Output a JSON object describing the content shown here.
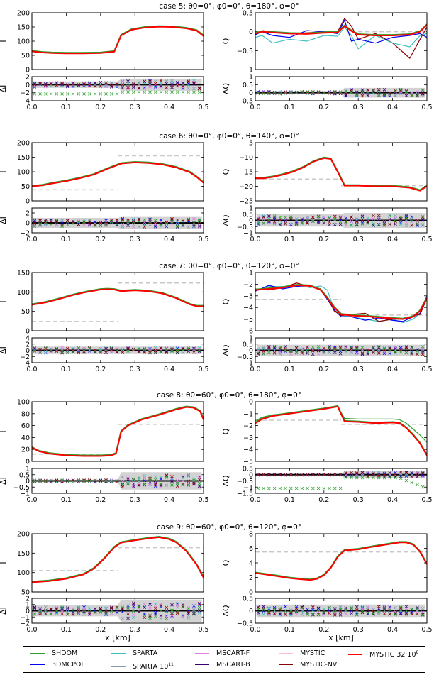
{
  "chart_data": [
    {
      "type": "line",
      "title": "case 5: θ0=0°, φ0=0°, θ=180°, φ=0°",
      "panels": {
        "I": {
          "ylabel": "I",
          "ylim": [
            0,
            200
          ],
          "yticks": [
            0,
            50,
            100,
            150,
            200
          ],
          "ref_dash": [],
          "x": [
            0.0,
            0.03,
            0.06,
            0.1,
            0.15,
            0.2,
            0.24,
            0.26,
            0.29,
            0.33,
            0.37,
            0.41,
            0.45,
            0.48,
            0.5
          ],
          "y": [
            64,
            60,
            58,
            57,
            57,
            58,
            63,
            120,
            140,
            148,
            151,
            150,
            145,
            137,
            118
          ]
        },
        "dI": {
          "ylabel": "ΔI",
          "ylim": [
            -4,
            2
          ],
          "yticks": [
            -4,
            -2,
            0,
            2
          ],
          "band_left": 0.8,
          "band_right": 1.5,
          "outlier_shdom": -2.3
        },
        "Q": {
          "ylabel": "Q",
          "ylim": [
            -1.0,
            0.5
          ],
          "yticks": [
            -1.0,
            -0.5,
            0.0,
            0.5
          ],
          "ref_dash": [
            {
              "x0": 0.3,
              "x1": 0.5,
              "y": 0.0
            }
          ],
          "x": [
            0.0,
            0.02,
            0.05,
            0.1,
            0.15,
            0.2,
            0.24,
            0.26,
            0.28,
            0.3,
            0.35,
            0.4,
            0.45,
            0.48,
            0.5
          ],
          "y": [
            -0.05,
            0.0,
            -0.02,
            -0.05,
            -0.06,
            -0.03,
            -0.02,
            0.15,
            0.02,
            -0.08,
            -0.1,
            -0.1,
            -0.08,
            0.0,
            0.18
          ],
          "noisy": {
            "MYSTIC-NV": [
              -0.08,
              0.03,
              0.0,
              -0.04,
              -0.03,
              0.0,
              0.0,
              0.35,
              0.15,
              -0.2,
              -0.05,
              -0.3,
              -0.7,
              -0.2,
              0.12
            ],
            "SPARTA": [
              -0.15,
              -0.1,
              -0.3,
              -0.2,
              -0.25,
              -0.1,
              -0.12,
              0.12,
              -0.1,
              -0.45,
              -0.1,
              -0.3,
              -0.4,
              -0.1,
              -0.05
            ],
            "3DMCPOL": [
              -0.08,
              0.0,
              -0.1,
              -0.15,
              0.03,
              0.0,
              -0.05,
              0.3,
              -0.25,
              -0.2,
              -0.3,
              -0.15,
              -0.1,
              -0.05,
              -0.15
            ]
          }
        },
        "dQ": {
          "ylabel": "ΔQ",
          "ylim": [
            -0.5,
            1.0
          ],
          "yticks": [
            -0.5,
            0.0,
            0.5,
            1.0
          ],
          "band_left": 0.1,
          "band_right": 0.3
        }
      }
    },
    {
      "type": "line",
      "title": "case 6: θ0=0°, φ0=0°, θ=140°, φ=0°",
      "panels": {
        "I": {
          "ylabel": "I",
          "ylim": [
            0,
            200
          ],
          "yticks": [
            0,
            50,
            100,
            150,
            200
          ],
          "ref_dash": [
            {
              "x0": 0.0,
              "x1": 0.25,
              "y": 38
            },
            {
              "x0": 0.25,
              "x1": 0.5,
              "y": 155
            }
          ],
          "x": [
            0.0,
            0.03,
            0.06,
            0.1,
            0.14,
            0.18,
            0.22,
            0.26,
            0.3,
            0.34,
            0.38,
            0.42,
            0.46,
            0.48,
            0.5
          ],
          "y": [
            50,
            53,
            60,
            68,
            78,
            90,
            110,
            128,
            132,
            130,
            125,
            115,
            98,
            82,
            62
          ]
        },
        "dI": {
          "ylabel": "ΔI",
          "ylim": [
            -2,
            3
          ],
          "yticks": [
            -2,
            0,
            2
          ],
          "band_left": 1.0,
          "band_right": 1.2
        },
        "Q": {
          "ylabel": "Q",
          "ylim": [
            -25,
            -5
          ],
          "yticks": [
            -25,
            -20,
            -15,
            -10,
            -5
          ],
          "ref_dash": [
            {
              "x0": 0.0,
              "x1": 0.25,
              "y": -17.5
            },
            {
              "x0": 0.25,
              "x1": 0.5,
              "y": -19.8
            }
          ],
          "x": [
            0.0,
            0.02,
            0.05,
            0.08,
            0.11,
            0.14,
            0.17,
            0.2,
            0.22,
            0.24,
            0.26,
            0.3,
            0.35,
            0.4,
            0.45,
            0.48,
            0.5
          ],
          "y": [
            -17.2,
            -17.3,
            -16.8,
            -16,
            -15,
            -13.5,
            -11.5,
            -10.3,
            -10.6,
            -15,
            -19.8,
            -19.8,
            -20,
            -20,
            -20.5,
            -21.5,
            -20
          ],
          "noisy": {}
        },
        "dQ": {
          "ylabel": "ΔQ",
          "ylim": [
            -1.0,
            1.0
          ],
          "yticks": [
            -1.0,
            -0.5,
            0.0,
            0.5,
            1.0
          ],
          "band_left": 0.5,
          "band_right": 0.6
        }
      }
    },
    {
      "type": "line",
      "title": "case 7: θ0=0°, φ0=0°, θ=120°, φ=0°",
      "panels": {
        "I": {
          "ylabel": "I",
          "ylim": [
            0,
            150
          ],
          "yticks": [
            0,
            50,
            100,
            150
          ],
          "ref_dash": [
            {
              "x0": 0.0,
              "x1": 0.25,
              "y": 24
            },
            {
              "x0": 0.25,
              "x1": 0.5,
              "y": 123
            }
          ],
          "x": [
            0.0,
            0.04,
            0.08,
            0.12,
            0.16,
            0.2,
            0.22,
            0.24,
            0.26,
            0.3,
            0.34,
            0.38,
            0.42,
            0.46,
            0.48,
            0.5
          ],
          "y": [
            67,
            73,
            82,
            92,
            100,
            106,
            107,
            106,
            102,
            104,
            102,
            96,
            84,
            68,
            63,
            63
          ]
        },
        "dI": {
          "ylabel": "ΔI",
          "ylim": [
            -4,
            4
          ],
          "yticks": [
            -4,
            -2,
            0,
            2,
            4
          ],
          "band_left": 1.2,
          "band_right": 1.2
        },
        "Q": {
          "ylabel": "Q",
          "ylim": [
            -6,
            -1
          ],
          "yticks": [
            -6,
            -5,
            -4,
            -3,
            -2,
            -1
          ],
          "ref_dash": [
            {
              "x0": 0.0,
              "x1": 0.25,
              "y": -3.3
            },
            {
              "x0": 0.35,
              "x1": 0.5,
              "y": -4.65
            }
          ],
          "x": [
            0.0,
            0.04,
            0.08,
            0.12,
            0.16,
            0.19,
            0.21,
            0.23,
            0.25,
            0.28,
            0.32,
            0.36,
            0.4,
            0.43,
            0.46,
            0.48,
            0.5
          ],
          "y": [
            -2.5,
            -2.4,
            -2.3,
            -2.1,
            -2.15,
            -2.5,
            -3.2,
            -4.0,
            -4.6,
            -4.7,
            -4.75,
            -4.85,
            -4.95,
            -5.0,
            -4.8,
            -4.3,
            -3.2
          ],
          "noisy": {
            "SPARTA": [
              -2.6,
              -2.2,
              -2.2,
              -2.1,
              -2.3,
              -2.15,
              -2.5,
              -4.2,
              -4.7,
              -4.8,
              -5.0,
              -5.2,
              -5.0,
              -5.3,
              -5.0,
              -4.5,
              -3.3
            ],
            "3DMCPOL": [
              -2.6,
              -2.1,
              -2.4,
              -2.2,
              -2.1,
              -2.5,
              -3.3,
              -4.2,
              -4.8,
              -4.8,
              -5.1,
              -4.9,
              -5.1,
              -5.2,
              -4.8,
              -4.5,
              -3.0
            ],
            "MYSTIC-NV": [
              -2.4,
              -2.5,
              -2.3,
              -1.9,
              -2.2,
              -2.4,
              -3.1,
              -4.3,
              -4.7,
              -4.6,
              -4.5,
              -5.2,
              -5.0,
              -5.0,
              -4.7,
              -4.6,
              -3.2
            ]
          }
        },
        "dQ": {
          "ylabel": "ΔQ",
          "ylim": [
            -1.0,
            1.0
          ],
          "yticks": [
            -1.0,
            -0.5,
            0.0,
            0.5,
            1.0
          ],
          "band_left": 0.45,
          "band_right": 0.45
        }
      }
    },
    {
      "type": "line",
      "title": "case 8: θ0=60°, φ0=0°, θ=180°, φ=0°",
      "panels": {
        "I": {
          "ylabel": "I",
          "ylim": [
            0,
            100
          ],
          "yticks": [
            0,
            20,
            40,
            60,
            80,
            100
          ],
          "ref_dash": [
            {
              "x0": 0.0,
              "x1": 0.25,
              "y": 12
            },
            {
              "x0": 0.25,
              "x1": 0.5,
              "y": 62
            }
          ],
          "x": [
            0.0,
            0.02,
            0.05,
            0.1,
            0.15,
            0.2,
            0.23,
            0.245,
            0.26,
            0.28,
            0.32,
            0.37,
            0.42,
            0.45,
            0.47,
            0.49,
            0.5
          ],
          "y": [
            23,
            17,
            13,
            10,
            9,
            9,
            10,
            13,
            50,
            60,
            70,
            78,
            87,
            91,
            90,
            84,
            70
          ]
        },
        "dI": {
          "ylabel": "ΔI",
          "ylim": [
            -1.0,
            1.0
          ],
          "yticks": [
            -1.0,
            -0.5,
            0.0,
            0.5,
            1.0
          ],
          "band_left": 0.1,
          "band_right": 0.7
        },
        "Q": {
          "ylabel": "Q",
          "ylim": [
            -5,
            0
          ],
          "yticks": [
            -5,
            -4,
            -3,
            -2,
            -1,
            0
          ],
          "ref_dash": [
            {
              "x0": 0.0,
              "x1": 0.25,
              "y": -1.55
            },
            {
              "x0": 0.25,
              "x1": 0.5,
              "y": -1.9
            }
          ],
          "x": [
            0.0,
            0.02,
            0.05,
            0.1,
            0.15,
            0.2,
            0.24,
            0.26,
            0.3,
            0.35,
            0.4,
            0.42,
            0.44,
            0.46,
            0.48,
            0.5
          ],
          "y": [
            -1.8,
            -1.45,
            -1.2,
            -1.0,
            -0.8,
            -0.6,
            -0.4,
            -1.65,
            -1.7,
            -1.8,
            -1.75,
            -1.8,
            -2.2,
            -2.8,
            -3.5,
            -4.5
          ],
          "noisy": {
            "SHDOM": [
              -1.6,
              -1.3,
              -1.1,
              -0.95,
              -0.8,
              -0.6,
              -0.4,
              -1.4,
              -1.45,
              -1.45,
              -1.45,
              -1.5,
              -1.8,
              -2.3,
              -2.8,
              -3.4
            ]
          }
        },
        "dQ": {
          "ylabel": "ΔQ",
          "ylim": [
            -1.5,
            0.5
          ],
          "yticks": [
            -1.5,
            -1.0,
            -0.5,
            0.0,
            0.5
          ],
          "band_left": 0.05,
          "band_right": 0.3,
          "outlier_shdom": -1.1
        }
      }
    },
    {
      "type": "line",
      "title": "case 9: θ0=60°, φ0=0°, θ=120°, φ=0°",
      "panels": {
        "I": {
          "ylabel": "I",
          "ylim": [
            50,
            200
          ],
          "yticks": [
            50,
            100,
            150,
            200
          ],
          "ref_dash": [
            {
              "x0": 0.0,
              "x1": 0.25,
              "y": 105
            },
            {
              "x0": 0.25,
              "x1": 0.5,
              "y": 164
            }
          ],
          "x": [
            0.0,
            0.05,
            0.1,
            0.15,
            0.18,
            0.21,
            0.24,
            0.26,
            0.3,
            0.34,
            0.37,
            0.4,
            0.42,
            0.45,
            0.48,
            0.5
          ],
          "y": [
            75,
            78,
            84,
            95,
            110,
            135,
            165,
            177,
            183,
            188,
            191,
            186,
            178,
            155,
            120,
            87
          ]
        },
        "dI": {
          "ylabel": "ΔI",
          "ylim": [
            -2,
            2
          ],
          "yticks": [
            -2,
            -1,
            0,
            1,
            2
          ],
          "band_left": 0.9,
          "band_right": 1.8
        },
        "Q": {
          "ylabel": "Q",
          "ylim": [
            0,
            8
          ],
          "yticks": [
            0,
            2,
            4,
            6,
            8
          ],
          "ref_dash": [
            {
              "x0": 0.0,
              "x1": 0.5,
              "y": 5.5
            }
          ],
          "x": [
            0.0,
            0.03,
            0.06,
            0.1,
            0.13,
            0.16,
            0.18,
            0.2,
            0.22,
            0.24,
            0.26,
            0.3,
            0.34,
            0.38,
            0.42,
            0.44,
            0.46,
            0.48,
            0.5
          ],
          "y": [
            2.6,
            2.4,
            2.2,
            1.9,
            1.75,
            1.65,
            1.8,
            2.3,
            3.3,
            4.8,
            5.7,
            5.85,
            6.2,
            6.5,
            6.8,
            6.8,
            6.5,
            5.5,
            3.8
          ],
          "noisy": {}
        },
        "dQ": {
          "ylabel": "ΔQ",
          "ylim": [
            -0.5,
            0.5
          ],
          "yticks": [
            -0.5,
            0.0,
            0.5
          ],
          "band_left": 0.25,
          "band_right": 0.25
        }
      }
    }
  ],
  "xaxis": {
    "xlabel": "x [km]",
    "xlim": [
      0.0,
      0.5
    ],
    "xticks": [
      "0.0",
      "0.1",
      "0.2",
      "0.3",
      "0.4",
      "0.5"
    ]
  },
  "legend": {
    "placement": "bottom",
    "entries": [
      {
        "label": "SHDOM",
        "color": "#2ca02c"
      },
      {
        "label": "3DMCPOL",
        "color": "#0000ff"
      },
      {
        "label": "SPARTA",
        "color": "#40c0c0"
      },
      {
        "label": "SPARTA 10",
        "sup": "11",
        "color": "#8899aa"
      },
      {
        "label": "MSCART-F",
        "color": "#e080e0"
      },
      {
        "label": "MSCART-B",
        "color": "#3a0070"
      },
      {
        "label": "MYSTIC",
        "color": "#ffc0cb"
      },
      {
        "label": "MYSTIC-NV",
        "color": "#8b0000"
      },
      {
        "label": "MYSTIC 32·10",
        "sup": "8",
        "color": "#ff0000"
      }
    ]
  },
  "colors": {
    "band": "#d3d3d3",
    "ref_dash": "#c8c8c8",
    "main": "#ff0000"
  }
}
